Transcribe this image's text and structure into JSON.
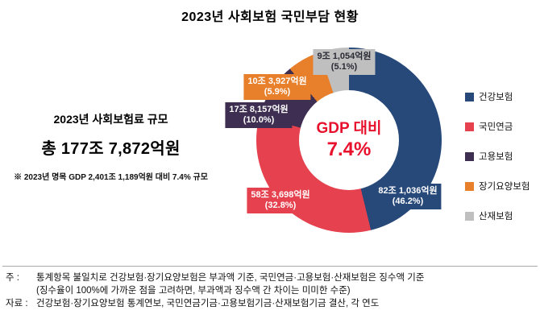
{
  "title": "2023년 사회보험 국민부담 현황",
  "left_panel": {
    "heading": "2023년 사회보험료 규모",
    "total": "총 177조 7,872억원",
    "gdp_note": "※ 2023년 명목 GDP 2,401조 1,189억원 대비 7.4% 규모"
  },
  "chart_data": {
    "type": "pie",
    "donut": true,
    "title": "2023년 사회보험 국민부담 현황",
    "categories": [
      "건강보험",
      "국민연금",
      "고용보험",
      "장기요양보험",
      "산재보험"
    ],
    "values": [
      46.2,
      32.8,
      10.0,
      5.9,
      5.1
    ],
    "amount_labels": [
      "82조 1,036억원",
      "58조 3,698억원",
      "17조 8,157억원",
      "10조 3,927억원",
      "9조 1,054억원"
    ],
    "pct_labels": [
      "(46.2%)",
      "(32.8%)",
      "(10.0%)",
      "(5.9%)",
      "(5.1%)"
    ],
    "colors": [
      "#27497a",
      "#e5414e",
      "#3e2f52",
      "#e87f2a",
      "#bfbfbf"
    ],
    "label_text_colors": [
      "#ffffff",
      "#ffffff",
      "#ffffff",
      "#ffffff",
      "#2a2a35"
    ],
    "center_label": {
      "line1": "GDP 대비",
      "line2": "7.4%",
      "color": "#e8112d"
    },
    "legend_position": "right",
    "total": "총 177조 7,872억원"
  },
  "footnotes": {
    "note_label": "주 :",
    "note_line1": "통계항목 불일치로 건강보험·장기요양보험은 부과액 기준, 국민연금·고용보험·산재보험은 징수액 기준",
    "note_line2": "(징수율이 100%에 가까운 점을 고려하면, 부과액과 징수액 간 차이는 미미한 수준)",
    "source_label": "자료 :",
    "source_text": "건강보험·장기요양보험 통계연보, 국민연금기금·고용보험기금·산재보험기금 결산, 각 연도"
  }
}
